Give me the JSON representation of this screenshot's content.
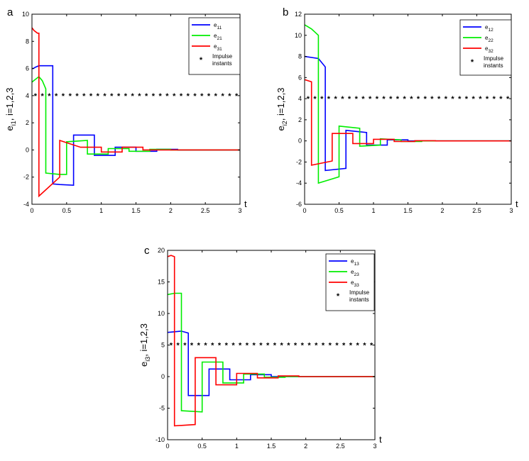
{
  "chart_data": [
    {
      "type": "line",
      "panel_label": "a",
      "ylabel_parts": [
        "e",
        "i1",
        ", i=1,2,3"
      ],
      "xlabel": "t",
      "xlim": [
        0,
        3
      ],
      "ylim": [
        -4,
        10
      ],
      "xticks": [
        0,
        0.5,
        1,
        1.5,
        2,
        2.5,
        3
      ],
      "xtick_labels": [
        "0",
        "0.5",
        "1",
        "1.5",
        "2",
        "2.5",
        "3"
      ],
      "yticks": [
        -4,
        -2,
        0,
        2,
        4,
        6,
        8,
        10
      ],
      "ytick_labels": [
        "-4",
        "-2",
        "0",
        "2",
        "4",
        "6",
        "8",
        "10"
      ],
      "impulse": {
        "name": "Impulse instants",
        "label_lines": [
          "Impulse",
          "instants"
        ],
        "y": 4,
        "x_start": 0.05,
        "x_step": 0.1,
        "count": 30
      },
      "series": [
        {
          "name": "e11",
          "base": "e",
          "sub": "11",
          "color": "#0000ff",
          "x": [
            0,
            0.02,
            0.05,
            0.1,
            0.1,
            0.3,
            0.3,
            0.4,
            0.4,
            0.6,
            0.6,
            0.9,
            0.9,
            1.2,
            1.2,
            1.5,
            1.5,
            1.8,
            1.8,
            2.1,
            2.1,
            3.0
          ],
          "y": [
            6,
            6,
            6.1,
            6.2,
            6.2,
            6.2,
            -2.5,
            -2.55,
            -2.55,
            -2.6,
            1.1,
            1.1,
            -0.4,
            -0.4,
            0.2,
            0.2,
            -0.1,
            -0.1,
            0.05,
            0.05,
            0,
            0
          ]
        },
        {
          "name": "e21",
          "base": "e",
          "sub": "21",
          "color": "#00ee00",
          "x": [
            0,
            0.05,
            0.1,
            0.15,
            0.2,
            0.2,
            0.4,
            0.4,
            0.5,
            0.5,
            0.8,
            0.8,
            1.1,
            1.1,
            1.4,
            1.4,
            1.7,
            1.7,
            2.0,
            2.0,
            3.0
          ],
          "y": [
            5,
            5.2,
            5.4,
            5.1,
            4.5,
            -1.7,
            -1.8,
            -1.8,
            -1.8,
            0.6,
            0.7,
            -0.3,
            -0.3,
            0.1,
            0.1,
            -0.1,
            -0.1,
            0.05,
            0.05,
            0,
            0
          ]
        },
        {
          "name": "e31",
          "base": "e",
          "sub": "31",
          "color": "#ff0000",
          "x": [
            0,
            0.03,
            0.08,
            0.1,
            0.1,
            0.4,
            0.4,
            0.7,
            0.7,
            1.0,
            1.0,
            1.3,
            1.3,
            1.6,
            1.6,
            2.2,
            2.2,
            3.0
          ],
          "y": [
            9,
            8.8,
            8.6,
            8.6,
            -3.4,
            -2.0,
            0.7,
            0.2,
            0.2,
            0.2,
            -0.15,
            -0.15,
            0.2,
            0.2,
            0,
            0,
            0,
            0
          ]
        }
      ]
    },
    {
      "type": "line",
      "panel_label": "b",
      "ylabel_parts": [
        "e",
        "i2",
        ", i=1,2,3"
      ],
      "xlabel": "t",
      "xlim": [
        0,
        3
      ],
      "ylim": [
        -6,
        12
      ],
      "xticks": [
        0,
        0.5,
        1,
        1.5,
        2,
        2.5,
        3
      ],
      "xtick_labels": [
        "0",
        "0.5",
        "1",
        "1.5",
        "2",
        "2.5",
        "3"
      ],
      "yticks": [
        -6,
        -4,
        -2,
        0,
        2,
        4,
        6,
        8,
        10,
        12
      ],
      "ytick_labels": [
        "-6",
        "-4",
        "-2",
        "0",
        "2",
        "4",
        "6",
        "8",
        "10",
        "12"
      ],
      "impulse": {
        "name": "Impulse instants",
        "label_lines": [
          "Impulse",
          "instants"
        ],
        "y": 4,
        "x_start": 0.05,
        "x_step": 0.1,
        "count": 30
      },
      "series": [
        {
          "name": "e12",
          "base": "e",
          "sub": "12",
          "color": "#0000ff",
          "x": [
            0,
            0.2,
            0.2,
            0.3,
            0.3,
            0.6,
            0.6,
            0.9,
            0.9,
            1.2,
            1.2,
            1.5,
            1.5,
            1.8,
            1.8,
            3.0
          ],
          "y": [
            8,
            7.8,
            7.8,
            7.0,
            -2.8,
            -2.6,
            1.0,
            0.8,
            -0.4,
            -0.4,
            0.1,
            0.1,
            0,
            0,
            0,
            0
          ]
        },
        {
          "name": "e22",
          "base": "e",
          "sub": "22",
          "color": "#00ee00",
          "x": [
            0,
            0.1,
            0.2,
            0.2,
            0.5,
            0.5,
            0.8,
            0.8,
            1.1,
            1.1,
            1.4,
            1.4,
            1.7,
            1.7,
            3.0
          ],
          "y": [
            11,
            10.6,
            10.0,
            -4.0,
            -3.4,
            1.4,
            1.2,
            -0.5,
            -0.4,
            0.2,
            0.1,
            -0.05,
            -0.05,
            0,
            0
          ]
        },
        {
          "name": "e32",
          "base": "e",
          "sub": "32",
          "color": "#ff0000",
          "x": [
            0,
            0.1,
            0.1,
            0.4,
            0.4,
            0.7,
            0.7,
            1.0,
            1.0,
            1.3,
            1.3,
            1.6,
            1.6,
            1.9,
            1.9,
            3.0
          ],
          "y": [
            5.8,
            5.6,
            -2.3,
            -1.9,
            0.7,
            0.7,
            -0.25,
            -0.25,
            0.15,
            0.15,
            -0.05,
            -0.05,
            0.02,
            0.02,
            0,
            0
          ]
        }
      ]
    },
    {
      "type": "line",
      "panel_label": "c",
      "ylabel_parts": [
        "e",
        "i3",
        ", i=1,2,3"
      ],
      "xlabel": "t",
      "xlim": [
        0,
        3
      ],
      "ylim": [
        -10,
        20
      ],
      "xticks": [
        0,
        0.5,
        1,
        1.5,
        2,
        2.5,
        3
      ],
      "xtick_labels": [
        "0",
        "0.5",
        "1",
        "1.5",
        "2",
        "2.5",
        "3"
      ],
      "yticks": [
        -10,
        -5,
        0,
        5,
        10,
        15,
        20
      ],
      "ytick_labels": [
        "-10",
        "-5",
        "0",
        "5",
        "10",
        "15",
        "20"
      ],
      "impulse": {
        "name": "Impulse instants",
        "label_lines": [
          "Impulse",
          "instants"
        ],
        "y": 5,
        "x_start": 0.05,
        "x_step": 0.1,
        "count": 30
      },
      "series": [
        {
          "name": "e13",
          "base": "e",
          "sub": "13",
          "color": "#0000ff",
          "x": [
            0,
            0.2,
            0.3,
            0.3,
            0.6,
            0.6,
            0.9,
            0.9,
            1.2,
            1.2,
            1.5,
            1.5,
            1.8,
            1.8,
            3.0
          ],
          "y": [
            7,
            7.2,
            6.9,
            -3.0,
            -3.0,
            1.2,
            1.2,
            -0.5,
            -0.5,
            0.3,
            0.3,
            0,
            0,
            0,
            0
          ]
        },
        {
          "name": "e23",
          "base": "e",
          "sub": "23",
          "color": "#00ee00",
          "x": [
            0,
            0.1,
            0.2,
            0.2,
            0.5,
            0.5,
            0.8,
            0.8,
            1.1,
            1.1,
            1.4,
            1.4,
            1.7,
            1.7,
            3.0
          ],
          "y": [
            13,
            13.2,
            13.2,
            -5.4,
            -5.6,
            2.3,
            2.3,
            -1.0,
            -1.0,
            0.4,
            0.4,
            -0.1,
            -0.1,
            0,
            0
          ]
        },
        {
          "name": "e33",
          "base": "e",
          "sub": "33",
          "color": "#ff0000",
          "x": [
            0,
            0.05,
            0.1,
            0.1,
            0.4,
            0.4,
            0.7,
            0.7,
            1.0,
            1.0,
            1.3,
            1.3,
            1.6,
            1.6,
            1.9,
            1.9,
            3.0
          ],
          "y": [
            19,
            19.2,
            19,
            -7.8,
            -7.6,
            3.0,
            3.0,
            -1.3,
            -1.3,
            0.5,
            0.5,
            -0.2,
            -0.2,
            0.1,
            0.1,
            0,
            0
          ]
        }
      ]
    }
  ]
}
